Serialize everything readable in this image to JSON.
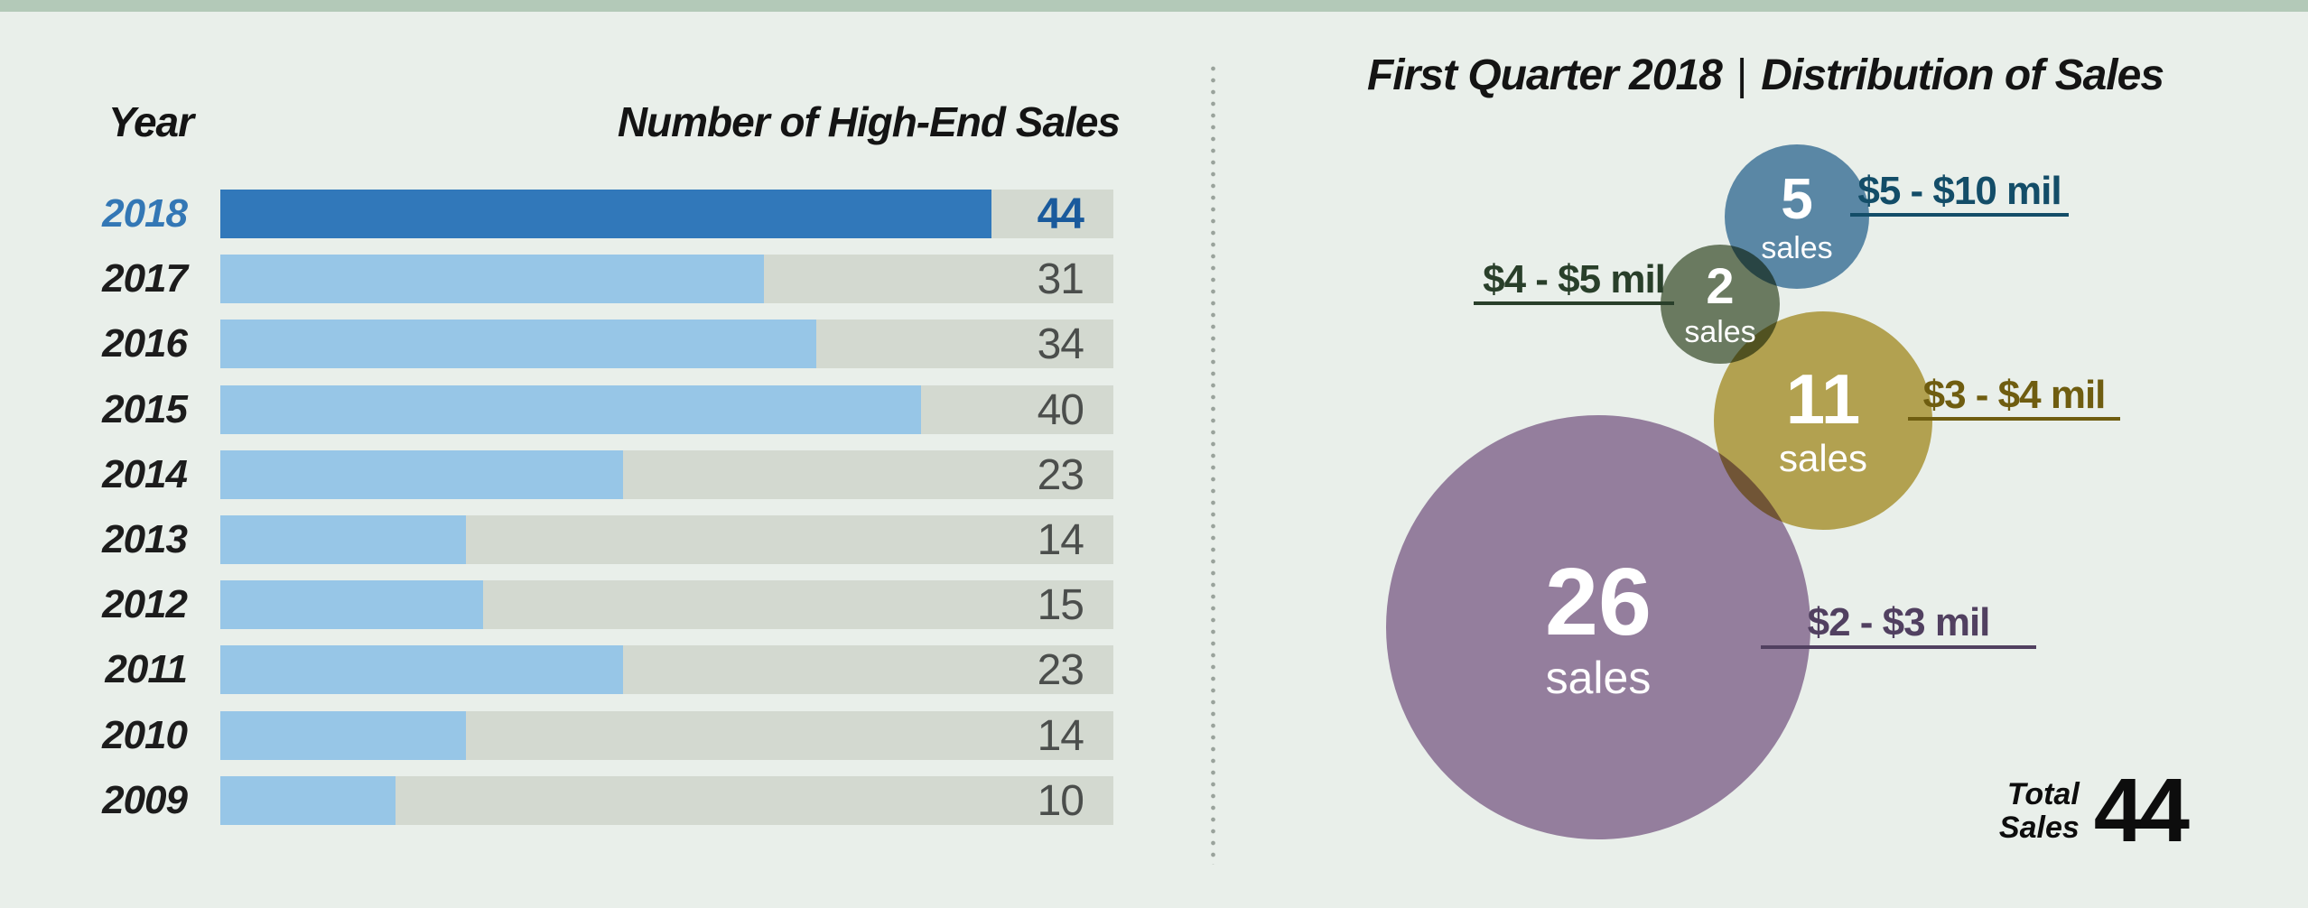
{
  "page": {
    "background": "#e9efea",
    "top_strip_color": "#b3c9b8",
    "divider_color": "#9aa39c"
  },
  "title": {
    "part1": "First Quarter 2018",
    "separator": "|",
    "part2": "Distribution of Sales"
  },
  "chart_data": [
    {
      "type": "bar",
      "orientation": "horizontal",
      "column_headers": [
        "Year",
        "Number of High-End Sales"
      ],
      "categories": [
        "2018",
        "2017",
        "2016",
        "2015",
        "2014",
        "2013",
        "2012",
        "2011",
        "2010",
        "2009"
      ],
      "values": [
        44,
        31,
        34,
        40,
        23,
        14,
        15,
        23,
        14,
        10
      ],
      "highlight_index": 0,
      "xlim": [
        0,
        51
      ],
      "grid": false,
      "value_labels_shown": true,
      "colors": {
        "bar": "#97c6e7",
        "bar_highlight": "#3178ba",
        "track": "#d3d9d0",
        "value_text": "#4b4e4c",
        "value_text_highlight": "#1a5a9c",
        "category_text": "#1c1c1c",
        "category_text_highlight": "#3377b5"
      }
    },
    {
      "type": "bubble",
      "title": "First Quarter 2018 | Distribution of Sales",
      "unit_label": "sales",
      "legend_position": "beside-bubbles",
      "series": [
        {
          "range": "$5 - $10 mil",
          "count": 5,
          "bubble_color": "#5a87a5",
          "label_color": "#134d68"
        },
        {
          "range": "$4 - $5 mil",
          "count": 2,
          "bubble_color": "#6a7a60",
          "label_color": "#293f2a"
        },
        {
          "range": "$3 - $4 mil",
          "count": 11,
          "bubble_color": "#b2a150",
          "label_color": "#6f5d10"
        },
        {
          "range": "$2 - $3 mil",
          "count": 26,
          "bubble_color": "#947e9d",
          "label_color": "#514060"
        }
      ],
      "total": {
        "label_line1": "Total",
        "label_line2": "Sales",
        "value": "44"
      }
    }
  ]
}
